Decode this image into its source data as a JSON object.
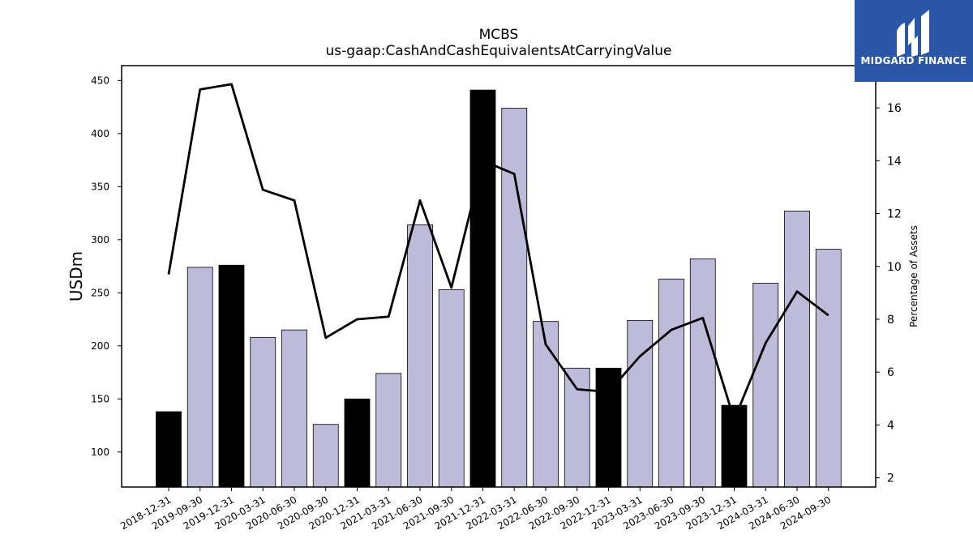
{
  "brand": {
    "name": "MIDGARD FINANCE",
    "color": "#2a56a8"
  },
  "chart_data": {
    "type": "bar",
    "title": "MCBS",
    "subtitle": "us-gaap:CashAndCashEquivalentsAtCarryingValue",
    "ylabel": "USDm",
    "y2label": "Percentage of Assets",
    "ylim": [
      67,
      464
    ],
    "y2lim": [
      1.65,
      17.6
    ],
    "yticks": [
      100,
      150,
      200,
      250,
      300,
      350,
      400,
      450
    ],
    "y2ticks": [
      2,
      4,
      6,
      8,
      10,
      12,
      14,
      16
    ],
    "grid": false,
    "colors": {
      "q4_bar": "#000000",
      "other_bar": "#bdbbda",
      "line": "#000000"
    },
    "categories": [
      "2018-12-31",
      "2019-09-30",
      "2019-12-31",
      "2020-03-31",
      "2020-06-30",
      "2020-09-30",
      "2020-12-31",
      "2021-03-31",
      "2021-06-30",
      "2021-09-30",
      "2021-12-31",
      "2022-03-31",
      "2022-06-30",
      "2022-09-30",
      "2022-12-31",
      "2023-03-31",
      "2023-06-30",
      "2023-09-30",
      "2023-12-31",
      "2024-03-31",
      "2024-06-30",
      "2024-09-30"
    ],
    "series": [
      {
        "kind": "bar",
        "axis": "left",
        "values": [
          138,
          274,
          276,
          208,
          215,
          126,
          150,
          174,
          314,
          253,
          441,
          424,
          223,
          179,
          179,
          224,
          263,
          282,
          144,
          259,
          327,
          291
        ],
        "highlight": [
          true,
          false,
          true,
          false,
          false,
          false,
          true,
          false,
          false,
          false,
          true,
          false,
          false,
          false,
          true,
          false,
          false,
          false,
          true,
          false,
          false,
          false
        ]
      },
      {
        "kind": "line",
        "axis": "right",
        "values": [
          9.7,
          16.7,
          16.9,
          12.9,
          12.5,
          7.3,
          8.0,
          8.1,
          12.5,
          9.2,
          14.0,
          13.5,
          7.05,
          5.35,
          5.25,
          6.6,
          7.6,
          8.05,
          4.2,
          7.1,
          9.05,
          8.15
        ]
      }
    ]
  }
}
